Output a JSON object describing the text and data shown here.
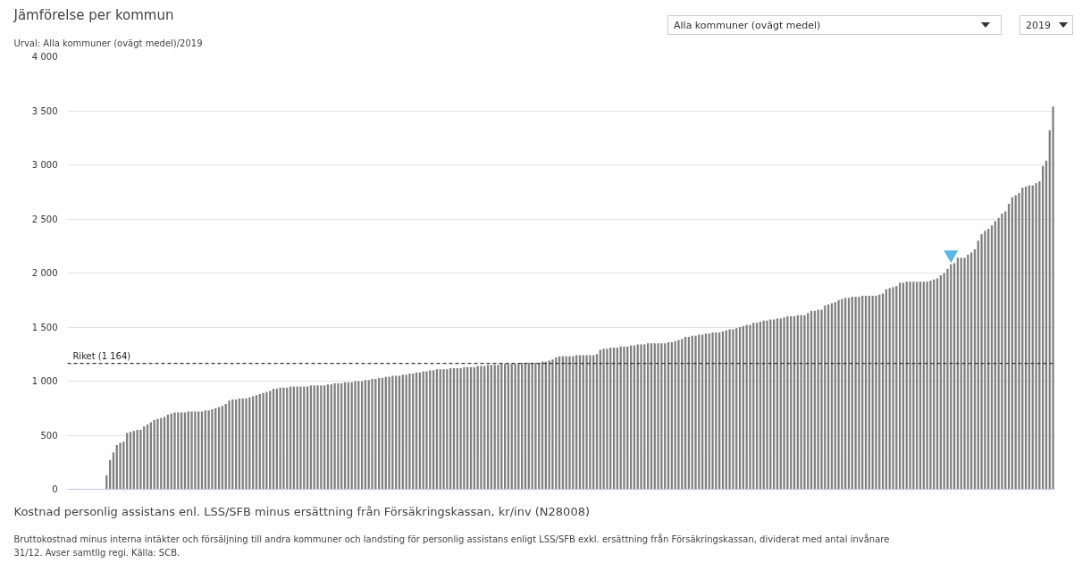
{
  "chart_data": {
    "type": "bar",
    "title": "Jämförelse per kommun",
    "subtitle": "Urval: Alla kommuner (ovägt medel)/2019",
    "categories": [
      null,
      null,
      null,
      null,
      null,
      null,
      null,
      null,
      null,
      null,
      null,
      null,
      null,
      null,
      null,
      null,
      null,
      null,
      null,
      null,
      null,
      null,
      null,
      null,
      null,
      null,
      null,
      null,
      null,
      null,
      null,
      null,
      null,
      null,
      null,
      null,
      null,
      null,
      null,
      null,
      null,
      null,
      null,
      null,
      null,
      null,
      null,
      null,
      null,
      null,
      null,
      null,
      null,
      null,
      null,
      null,
      null,
      null,
      null,
      null,
      null,
      null,
      null,
      null,
      null,
      null,
      null,
      null,
      null,
      null,
      null,
      null,
      null,
      null,
      null,
      null,
      null,
      null,
      null,
      null,
      null,
      null,
      null,
      null,
      null,
      null,
      null,
      null,
      null,
      null,
      null,
      null,
      null,
      null,
      null,
      null,
      null,
      null,
      null,
      null,
      null,
      null,
      null,
      null,
      null,
      null,
      null,
      null,
      null,
      null,
      null,
      null,
      null,
      null,
      null,
      null,
      null,
      null,
      null,
      null,
      null,
      null,
      null,
      null,
      null,
      null,
      null,
      null,
      null,
      null,
      null,
      null,
      null,
      null,
      null,
      null,
      null,
      null,
      null,
      null,
      null,
      null,
      null,
      null,
      null,
      null,
      null,
      null,
      null,
      null,
      null,
      null,
      null,
      null,
      null,
      null,
      null,
      null,
      null,
      null,
      null,
      null,
      null,
      null,
      null,
      null,
      null,
      null,
      null,
      null,
      null,
      null,
      null,
      null,
      null,
      null,
      null,
      null,
      null,
      null,
      null,
      null,
      null,
      null,
      null,
      null,
      null,
      null,
      null,
      null,
      null,
      null,
      null,
      null,
      null,
      null,
      null,
      null,
      null,
      null,
      null,
      null,
      null,
      null,
      null,
      null,
      null,
      null,
      null,
      null,
      null,
      null,
      null,
      null,
      null,
      null,
      null,
      null,
      null,
      null,
      null,
      null,
      null,
      null,
      null,
      null,
      null,
      null,
      null,
      null,
      null,
      null,
      null,
      null,
      null,
      null,
      null,
      null,
      null,
      null,
      null,
      null,
      null,
      null,
      null,
      null,
      null,
      null,
      null,
      null,
      null,
      null,
      null,
      null,
      null,
      null,
      null,
      null,
      null,
      null,
      null,
      null,
      null,
      null,
      null,
      null,
      null,
      null,
      null,
      null,
      null,
      null,
      null,
      null,
      null,
      null,
      null,
      null,
      null,
      null,
      null,
      null,
      null,
      null,
      null,
      null,
      null,
      null,
      null,
      null
    ],
    "series": [
      {
        "color": "#7f7f7f",
        "values": [
          null,
          null,
          null,
          null,
          null,
          null,
          null,
          null,
          null,
          null,
          null,
          130,
          270,
          340,
          410,
          430,
          440,
          520,
          530,
          540,
          550,
          550,
          580,
          600,
          620,
          640,
          650,
          660,
          670,
          690,
          700,
          710,
          710,
          710,
          710,
          720,
          720,
          720,
          720,
          720,
          730,
          730,
          740,
          750,
          760,
          770,
          790,
          820,
          830,
          830,
          840,
          840,
          840,
          850,
          860,
          870,
          880,
          890,
          900,
          910,
          930,
          930,
          940,
          940,
          940,
          950,
          950,
          950,
          950,
          950,
          950,
          960,
          960,
          960,
          960,
          960,
          970,
          970,
          980,
          980,
          980,
          990,
          990,
          990,
          1000,
          1000,
          1000,
          1010,
          1010,
          1020,
          1020,
          1030,
          1030,
          1040,
          1040,
          1050,
          1050,
          1050,
          1060,
          1060,
          1070,
          1070,
          1080,
          1080,
          1090,
          1090,
          1100,
          1100,
          1110,
          1110,
          1110,
          1110,
          1120,
          1120,
          1120,
          1120,
          1130,
          1130,
          1130,
          1130,
          1140,
          1140,
          1140,
          1150,
          1150,
          1150,
          1150,
          1160,
          1160,
          1160,
          1160,
          1160,
          1160,
          1170,
          1170,
          1170,
          1170,
          1170,
          1170,
          1180,
          1180,
          1190,
          1200,
          1220,
          1230,
          1230,
          1230,
          1230,
          1230,
          1240,
          1240,
          1240,
          1240,
          1240,
          1240,
          1250,
          1290,
          1300,
          1300,
          1310,
          1310,
          1310,
          1320,
          1320,
          1320,
          1330,
          1330,
          1340,
          1340,
          1340,
          1350,
          1350,
          1350,
          1350,
          1350,
          1350,
          1360,
          1360,
          1370,
          1380,
          1390,
          1410,
          1410,
          1420,
          1420,
          1430,
          1430,
          1440,
          1440,
          1450,
          1450,
          1450,
          1460,
          1470,
          1480,
          1480,
          1490,
          1500,
          1510,
          1520,
          1520,
          1540,
          1540,
          1550,
          1560,
          1560,
          1570,
          1570,
          1580,
          1580,
          1590,
          1600,
          1600,
          1600,
          1610,
          1610,
          1610,
          1630,
          1650,
          1650,
          1660,
          1660,
          1700,
          1710,
          1720,
          1730,
          1750,
          1760,
          1770,
          1770,
          1780,
          1780,
          1780,
          1790,
          1790,
          1790,
          1790,
          1790,
          1800,
          1810,
          1850,
          1860,
          1870,
          1880,
          1910,
          1910,
          1920,
          1920,
          1920,
          1920,
          1920,
          1920,
          1920,
          1930,
          1940,
          1950,
          1980,
          2000,
          2040,
          2080,
          2090,
          2140,
          2140,
          2140,
          2170,
          2190,
          2220,
          2300,
          2360,
          2390,
          2410,
          2440,
          2480,
          2510,
          2550,
          2570,
          2640,
          2700,
          2720,
          2740,
          2790,
          2800,
          2810,
          2810,
          2830,
          2850,
          2990,
          3040,
          3320,
          3540
        ]
      },
      {
        "type": "scatter",
        "color": "#5bb8e6",
        "marker": "triangle",
        "values": [
          null,
          null,
          null,
          null,
          null,
          null,
          null,
          null,
          null,
          null,
          null,
          null,
          null,
          null,
          null,
          null,
          null,
          null,
          null,
          null,
          null,
          null,
          null,
          null,
          null,
          null,
          null,
          null,
          null,
          null,
          null,
          null,
          null,
          null,
          null,
          null,
          null,
          null,
          null,
          null,
          null,
          null,
          null,
          null,
          null,
          null,
          null,
          null,
          null,
          null,
          null,
          null,
          null,
          null,
          null,
          null,
          null,
          null,
          null,
          null,
          null,
          null,
          null,
          null,
          null,
          null,
          null,
          null,
          null,
          null,
          null,
          null,
          null,
          null,
          null,
          null,
          null,
          null,
          null,
          null,
          null,
          null,
          null,
          null,
          null,
          null,
          null,
          null,
          null,
          null,
          null,
          null,
          null,
          null,
          null,
          null,
          null,
          null,
          null,
          null,
          null,
          null,
          null,
          null,
          null,
          null,
          null,
          null,
          null,
          null,
          null,
          null,
          null,
          null,
          null,
          null,
          null,
          null,
          null,
          null,
          null,
          null,
          null,
          null,
          null,
          null,
          null,
          null,
          null,
          null,
          null,
          null,
          null,
          null,
          null,
          null,
          null,
          null,
          null,
          null,
          null,
          null,
          null,
          null,
          null,
          null,
          null,
          null,
          null,
          null,
          null,
          null,
          null,
          null,
          null,
          null,
          null,
          null,
          null,
          null,
          null,
          null,
          null,
          null,
          null,
          null,
          null,
          null,
          null,
          null,
          null,
          null,
          null,
          null,
          null,
          null,
          null,
          null,
          null,
          null,
          null,
          null,
          null,
          null,
          null,
          null,
          null,
          null,
          null,
          null,
          null,
          null,
          null,
          null,
          null,
          null,
          null,
          null,
          null,
          null,
          null,
          null,
          null,
          null,
          null,
          null,
          null,
          null,
          null,
          null,
          null,
          null,
          null,
          null,
          null,
          null,
          null,
          null,
          null,
          null,
          null,
          null,
          null,
          null,
          null,
          null,
          null,
          null,
          null,
          null,
          null,
          null,
          null,
          null,
          null,
          null,
          null,
          null,
          null,
          null,
          null,
          null,
          null,
          null,
          null,
          null,
          null,
          null,
          null,
          null,
          null,
          null,
          null,
          null,
          null,
          null,
          null,
          null,
          null,
          2170,
          null,
          null,
          null,
          null,
          null,
          null,
          null,
          null,
          null,
          null,
          null,
          null,
          null,
          null,
          null,
          null,
          null,
          null,
          null,
          null,
          null,
          null,
          null,
          null,
          null,
          null,
          null,
          null,
          null,
          null
        ]
      }
    ],
    "ylim": [
      0,
      4000
    ],
    "yticks": [
      0,
      500,
      {
        "value": 1000,
        "label": "1 000"
      },
      {
        "value": 1500,
        "label": "1 500"
      },
      {
        "value": 2000,
        "label": "2 000"
      },
      {
        "value": 2500,
        "label": "2 500"
      },
      {
        "value": 3000,
        "label": "3 000"
      },
      {
        "value": 3500,
        "label": "3 500"
      },
      {
        "value": 4000,
        "label": "4 000"
      }
    ],
    "grid": "y",
    "ref_lines": [
      {
        "axis": "y",
        "value": 1164,
        "label": "Riket (1 164)",
        "color": "#333333",
        "line_style": "dashed"
      }
    ],
    "annotations": [
      "Alla kommuner (ovägt medel)",
      "2019",
      "Kostnad personlig assistans enl. LSS/SFB minus ersättning från Försäkringskassan, kr/inv (N28008)",
      "Bruttokostnad minus interna intäkter och försäljning till andra kommuner och landsting för personlig assistans enligt LSS/SFB exkl. ersättning från Försäkringskassan, dividerat med antal invånare",
      "31/12. Avser samtlig regi. Källa: SCB."
    ]
  }
}
